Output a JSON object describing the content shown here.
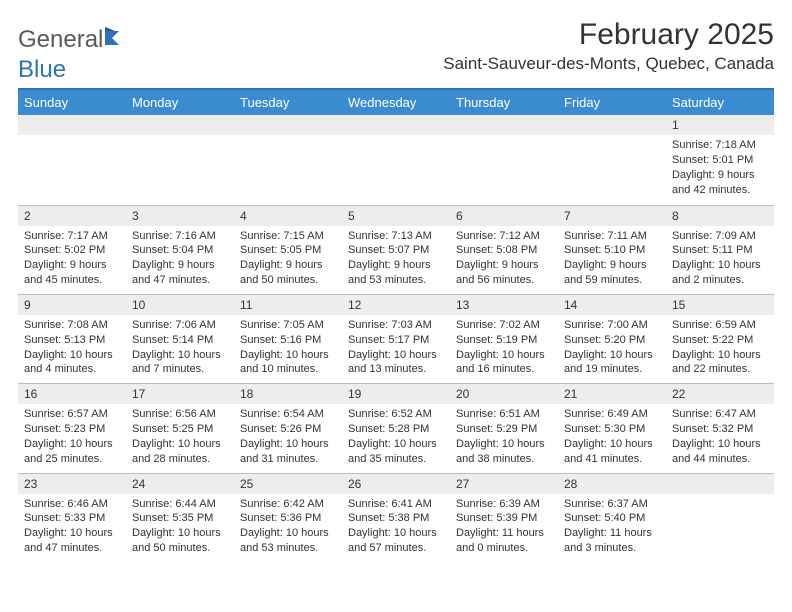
{
  "logo": {
    "text1": "General",
    "text2": "Blue",
    "color1": "#5a5a5a",
    "color2": "#2e74b5"
  },
  "title": "February 2025",
  "location": "Saint-Sauveur-des-Monts, Quebec, Canada",
  "colors": {
    "header_bg": "#3a8bd0",
    "header_text": "#ffffff",
    "daynum_bg": "#ededed",
    "border": "#bdbdbd",
    "accent": "#2e74b5",
    "body_text": "#333333"
  },
  "day_headers": [
    "Sunday",
    "Monday",
    "Tuesday",
    "Wednesday",
    "Thursday",
    "Friday",
    "Saturday"
  ],
  "weeks": [
    [
      null,
      null,
      null,
      null,
      null,
      null,
      {
        "n": "1",
        "sr": "Sunrise: 7:18 AM",
        "ss": "Sunset: 5:01 PM",
        "dl": "Daylight: 9 hours and 42 minutes."
      }
    ],
    [
      {
        "n": "2",
        "sr": "Sunrise: 7:17 AM",
        "ss": "Sunset: 5:02 PM",
        "dl": "Daylight: 9 hours and 45 minutes."
      },
      {
        "n": "3",
        "sr": "Sunrise: 7:16 AM",
        "ss": "Sunset: 5:04 PM",
        "dl": "Daylight: 9 hours and 47 minutes."
      },
      {
        "n": "4",
        "sr": "Sunrise: 7:15 AM",
        "ss": "Sunset: 5:05 PM",
        "dl": "Daylight: 9 hours and 50 minutes."
      },
      {
        "n": "5",
        "sr": "Sunrise: 7:13 AM",
        "ss": "Sunset: 5:07 PM",
        "dl": "Daylight: 9 hours and 53 minutes."
      },
      {
        "n": "6",
        "sr": "Sunrise: 7:12 AM",
        "ss": "Sunset: 5:08 PM",
        "dl": "Daylight: 9 hours and 56 minutes."
      },
      {
        "n": "7",
        "sr": "Sunrise: 7:11 AM",
        "ss": "Sunset: 5:10 PM",
        "dl": "Daylight: 9 hours and 59 minutes."
      },
      {
        "n": "8",
        "sr": "Sunrise: 7:09 AM",
        "ss": "Sunset: 5:11 PM",
        "dl": "Daylight: 10 hours and 2 minutes."
      }
    ],
    [
      {
        "n": "9",
        "sr": "Sunrise: 7:08 AM",
        "ss": "Sunset: 5:13 PM",
        "dl": "Daylight: 10 hours and 4 minutes."
      },
      {
        "n": "10",
        "sr": "Sunrise: 7:06 AM",
        "ss": "Sunset: 5:14 PM",
        "dl": "Daylight: 10 hours and 7 minutes."
      },
      {
        "n": "11",
        "sr": "Sunrise: 7:05 AM",
        "ss": "Sunset: 5:16 PM",
        "dl": "Daylight: 10 hours and 10 minutes."
      },
      {
        "n": "12",
        "sr": "Sunrise: 7:03 AM",
        "ss": "Sunset: 5:17 PM",
        "dl": "Daylight: 10 hours and 13 minutes."
      },
      {
        "n": "13",
        "sr": "Sunrise: 7:02 AM",
        "ss": "Sunset: 5:19 PM",
        "dl": "Daylight: 10 hours and 16 minutes."
      },
      {
        "n": "14",
        "sr": "Sunrise: 7:00 AM",
        "ss": "Sunset: 5:20 PM",
        "dl": "Daylight: 10 hours and 19 minutes."
      },
      {
        "n": "15",
        "sr": "Sunrise: 6:59 AM",
        "ss": "Sunset: 5:22 PM",
        "dl": "Daylight: 10 hours and 22 minutes."
      }
    ],
    [
      {
        "n": "16",
        "sr": "Sunrise: 6:57 AM",
        "ss": "Sunset: 5:23 PM",
        "dl": "Daylight: 10 hours and 25 minutes."
      },
      {
        "n": "17",
        "sr": "Sunrise: 6:56 AM",
        "ss": "Sunset: 5:25 PM",
        "dl": "Daylight: 10 hours and 28 minutes."
      },
      {
        "n": "18",
        "sr": "Sunrise: 6:54 AM",
        "ss": "Sunset: 5:26 PM",
        "dl": "Daylight: 10 hours and 31 minutes."
      },
      {
        "n": "19",
        "sr": "Sunrise: 6:52 AM",
        "ss": "Sunset: 5:28 PM",
        "dl": "Daylight: 10 hours and 35 minutes."
      },
      {
        "n": "20",
        "sr": "Sunrise: 6:51 AM",
        "ss": "Sunset: 5:29 PM",
        "dl": "Daylight: 10 hours and 38 minutes."
      },
      {
        "n": "21",
        "sr": "Sunrise: 6:49 AM",
        "ss": "Sunset: 5:30 PM",
        "dl": "Daylight: 10 hours and 41 minutes."
      },
      {
        "n": "22",
        "sr": "Sunrise: 6:47 AM",
        "ss": "Sunset: 5:32 PM",
        "dl": "Daylight: 10 hours and 44 minutes."
      }
    ],
    [
      {
        "n": "23",
        "sr": "Sunrise: 6:46 AM",
        "ss": "Sunset: 5:33 PM",
        "dl": "Daylight: 10 hours and 47 minutes."
      },
      {
        "n": "24",
        "sr": "Sunrise: 6:44 AM",
        "ss": "Sunset: 5:35 PM",
        "dl": "Daylight: 10 hours and 50 minutes."
      },
      {
        "n": "25",
        "sr": "Sunrise: 6:42 AM",
        "ss": "Sunset: 5:36 PM",
        "dl": "Daylight: 10 hours and 53 minutes."
      },
      {
        "n": "26",
        "sr": "Sunrise: 6:41 AM",
        "ss": "Sunset: 5:38 PM",
        "dl": "Daylight: 10 hours and 57 minutes."
      },
      {
        "n": "27",
        "sr": "Sunrise: 6:39 AM",
        "ss": "Sunset: 5:39 PM",
        "dl": "Daylight: 11 hours and 0 minutes."
      },
      {
        "n": "28",
        "sr": "Sunrise: 6:37 AM",
        "ss": "Sunset: 5:40 PM",
        "dl": "Daylight: 11 hours and 3 minutes."
      },
      null
    ]
  ]
}
